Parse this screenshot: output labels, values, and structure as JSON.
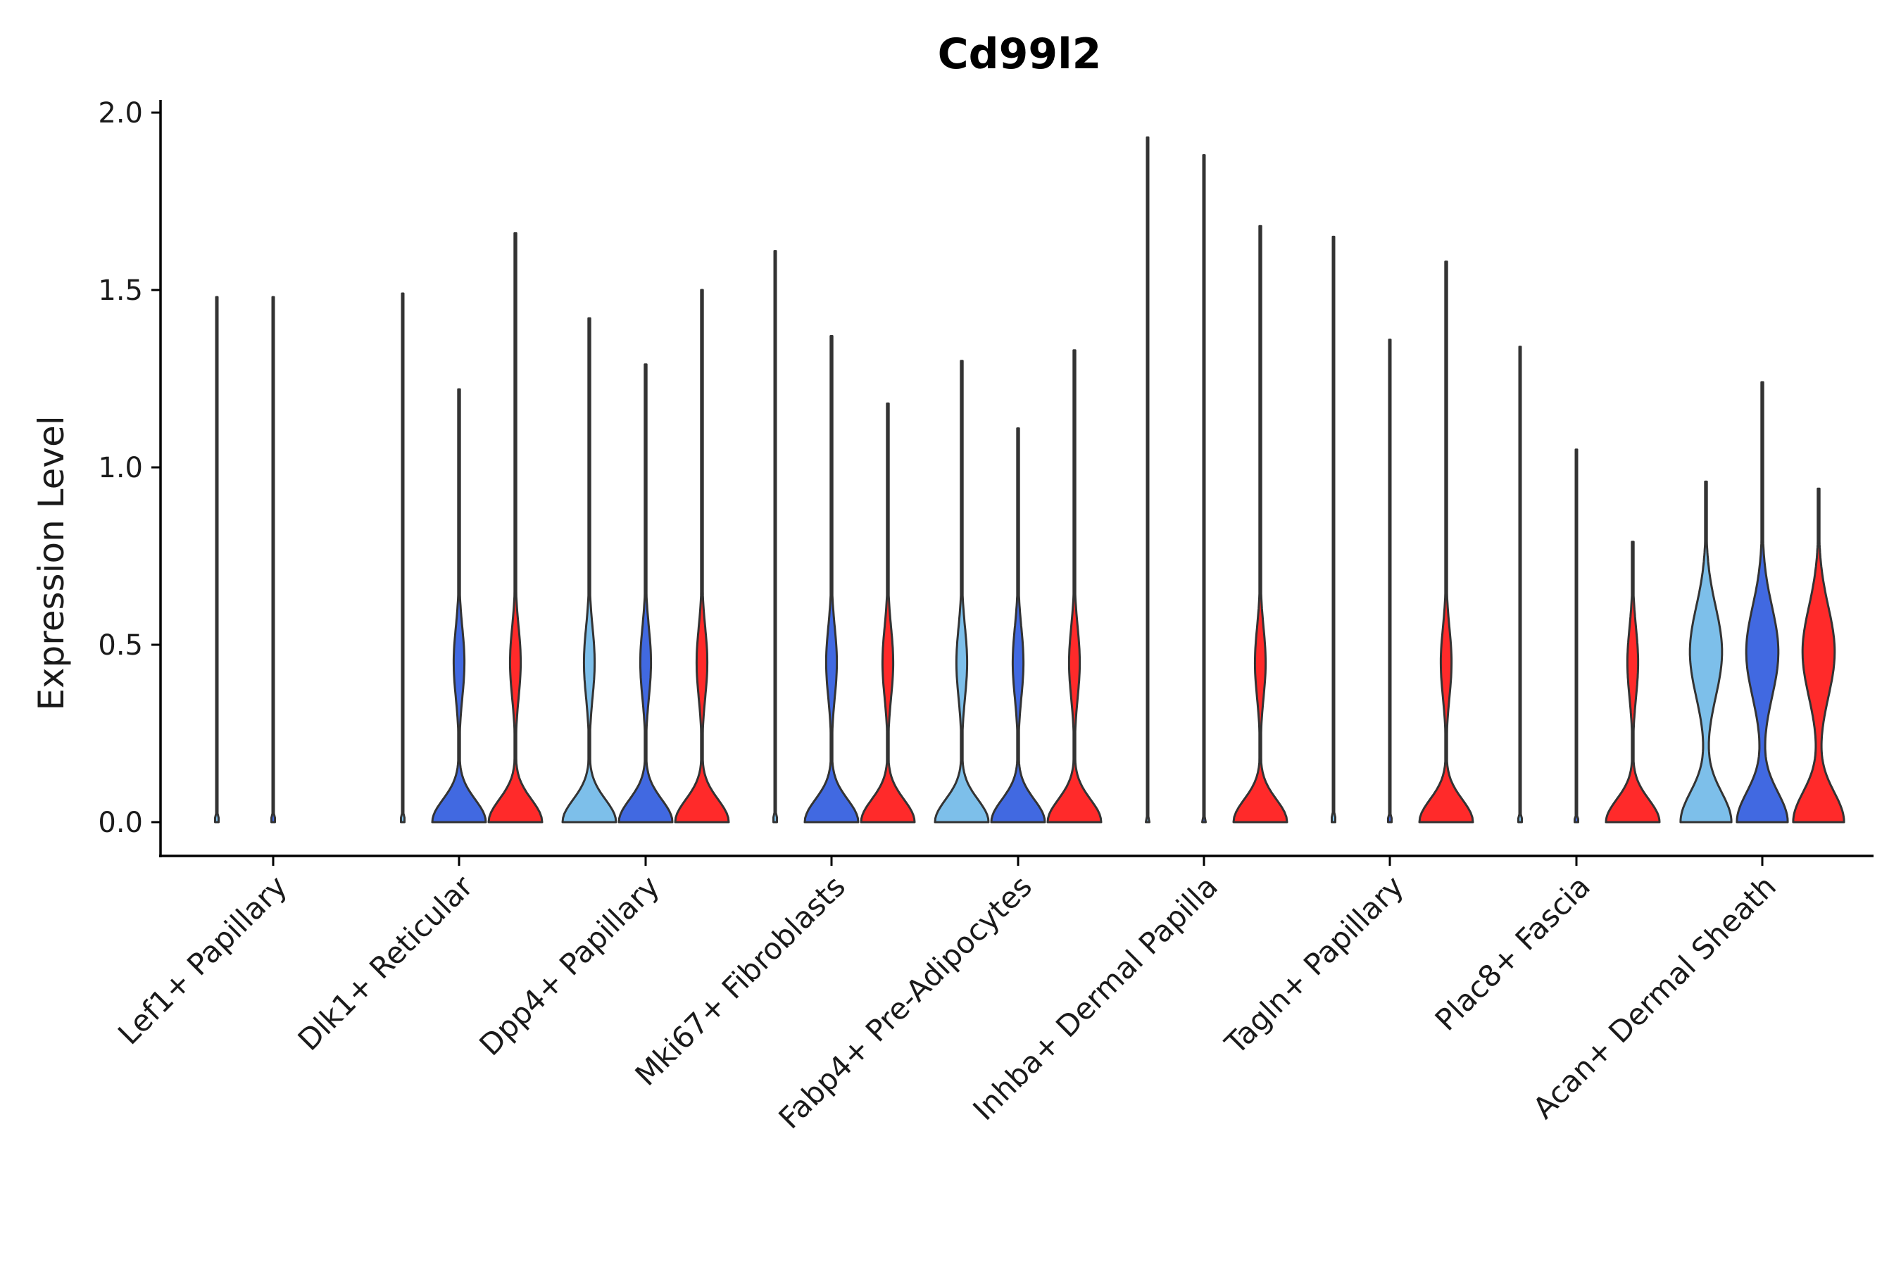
{
  "chart_data": {
    "type": "violin",
    "title": "Cd99l2",
    "xlabel": "",
    "ylabel": "Expression Level",
    "ylim": [
      -0.1,
      2.03
    ],
    "yticks": [
      "0.0",
      "0.5",
      "1.0",
      "1.5",
      "2.0"
    ],
    "ytick_values": [
      0.0,
      0.5,
      1.0,
      1.5,
      2.0
    ],
    "categories": [
      "Lef1+ Papillary",
      "Dlk1+ Reticular",
      "Dpp4+ Papillary",
      "Mki67+ Fibroblasts",
      "Fabp4+ Pre-Adipocytes",
      "Inhba+ Dermal Papilla",
      "Tagln+ Papillary",
      "Plac8+ Fascia",
      "Acan+ Dermal Sheath"
    ],
    "series": [
      {
        "name": "group-light-blue",
        "color": "#7dbfea",
        "max_values": [
          1.48,
          1.49,
          1.42,
          1.61,
          1.3,
          1.93,
          1.65,
          1.34,
          0.96
        ],
        "shape": [
          "zero",
          "zero",
          "bimodal",
          "zero",
          "bimodal",
          "zero",
          "zero",
          "zero",
          "wide"
        ]
      },
      {
        "name": "group-blue",
        "color": "#4169e1",
        "max_values": [
          1.48,
          1.22,
          1.29,
          1.37,
          1.11,
          1.88,
          1.36,
          1.05,
          1.24
        ],
        "shape": [
          "zero",
          "bimodal",
          "bimodal",
          "bimodal",
          "bimodal",
          "zero",
          "zero",
          "zero",
          "wide"
        ]
      },
      {
        "name": "group-red",
        "color": "#ff2a2a",
        "max_values": [
          null,
          1.66,
          1.5,
          1.18,
          1.33,
          1.68,
          1.58,
          0.79,
          0.94
        ],
        "shape": [
          "none",
          "bimodal",
          "bimodal",
          "bimodal",
          "bimodal",
          "bimodal",
          "bimodal",
          "bimodal",
          "wide"
        ]
      }
    ]
  }
}
